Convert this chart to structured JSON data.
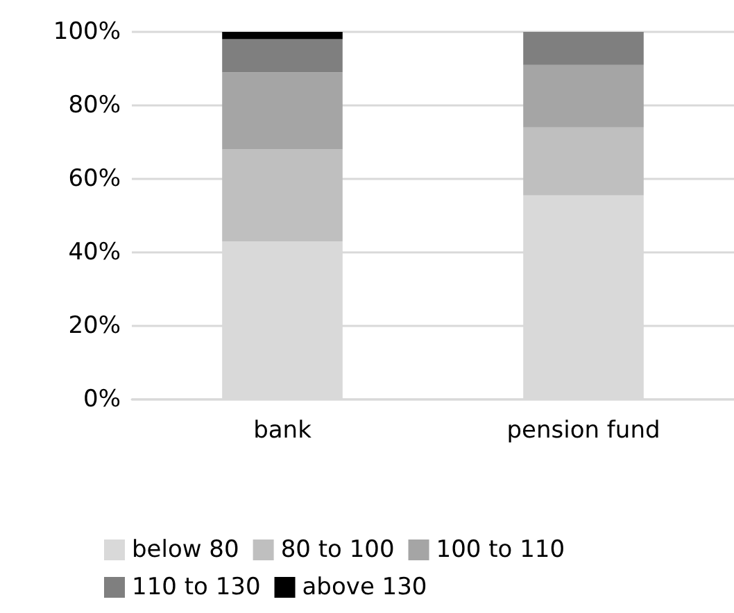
{
  "chart_data": {
    "type": "bar",
    "stacked": true,
    "categories": [
      "bank",
      "pension fund"
    ],
    "series": [
      {
        "name": "below 80",
        "color": "#d9d9d9",
        "values": [
          43,
          55.5
        ]
      },
      {
        "name": "80 to 100",
        "color": "#bfbfbf",
        "values": [
          25,
          18.5
        ]
      },
      {
        "name": "100 to 110",
        "color": "#a5a5a5",
        "values": [
          21,
          17
        ]
      },
      {
        "name": "110 to 130",
        "color": "#7f7f7f",
        "values": [
          9,
          9
        ]
      },
      {
        "name": "above 130",
        "color": "#000000",
        "values": [
          2,
          0
        ]
      }
    ],
    "ylim": [
      0,
      100
    ],
    "yticks": [
      {
        "value": 0,
        "label": "0%"
      },
      {
        "value": 20,
        "label": "20%"
      },
      {
        "value": 40,
        "label": "40%"
      },
      {
        "value": 60,
        "label": "60%"
      },
      {
        "value": 80,
        "label": "80%"
      },
      {
        "value": 100,
        "label": "100%"
      }
    ],
    "grid": "y",
    "legend": "bottom"
  }
}
